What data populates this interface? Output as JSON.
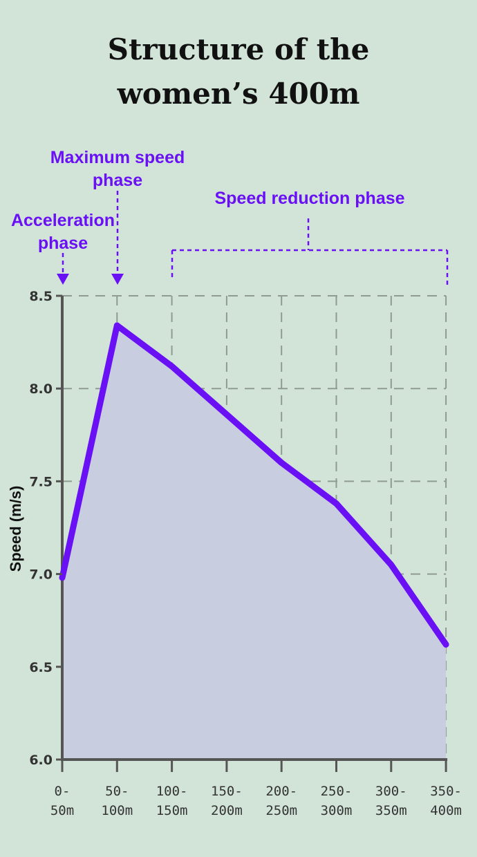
{
  "title_lines": [
    "Structure of the",
    "women’s 400m"
  ],
  "colors": {
    "background": "#d2e4d8",
    "accent": "#6a10f5",
    "area_fill": "#c8cde0",
    "axis": "#555555",
    "grid": "#8f9a93"
  },
  "annotations": {
    "acceleration": [
      "Acceleration",
      "phase"
    ],
    "maximum": [
      "Maximum speed",
      "phase"
    ],
    "reduction": [
      "Speed reduction phase"
    ]
  },
  "chart_data": {
    "type": "area",
    "title": "Structure of the women’s 400m",
    "xlabel": "",
    "ylabel": "Speed (m/s)",
    "categories": [
      [
        "0-",
        "50m"
      ],
      [
        "50-",
        "100m"
      ],
      [
        "100-",
        "150m"
      ],
      [
        "150-",
        "200m"
      ],
      [
        "200-",
        "250m"
      ],
      [
        "250-",
        "300m"
      ],
      [
        "300-",
        "350m"
      ],
      [
        "350-",
        "400m"
      ]
    ],
    "values": [
      6.98,
      8.34,
      8.12,
      7.86,
      7.6,
      7.38,
      7.05,
      6.62
    ],
    "ylim": [
      6.0,
      8.5
    ],
    "yticks": [
      "6.0",
      "6.5",
      "7.0",
      "7.5",
      "8.0",
      "8.5"
    ],
    "grid": true,
    "legend": "none"
  }
}
